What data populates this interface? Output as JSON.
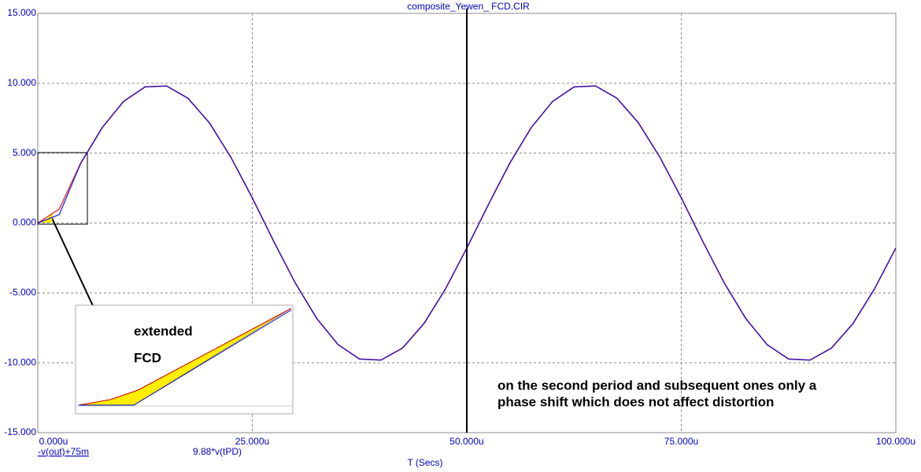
{
  "chart_data": {
    "type": "line",
    "title": "composite_Yewen_      FCD.CIR",
    "x_label": "T (Secs)",
    "x": [
      0,
      2.5,
      5,
      7.5,
      10,
      12.5,
      15,
      17.5,
      20,
      22.5,
      25,
      27.5,
      30,
      32.5,
      35,
      37.5,
      40,
      42.5,
      45,
      47.5,
      50,
      52.5,
      55,
      57.5,
      60,
      62.5,
      65,
      67.5,
      70,
      72.5,
      75,
      77.5,
      80,
      82.5,
      85,
      87.5,
      90,
      92.5,
      95,
      97.5,
      100
    ],
    "series": [
      {
        "name": "-v(out)+75m",
        "color": "#e00000",
        "values": [
          0,
          1.0,
          4.27,
          6.82,
          8.7,
          9.74,
          9.81,
          8.93,
          7.17,
          4.71,
          1.8,
          -1.31,
          -4.28,
          -6.82,
          -8.7,
          -9.73,
          -9.81,
          -8.95,
          -7.2,
          -4.73,
          -1.79,
          1.3,
          4.27,
          6.82,
          8.7,
          9.74,
          9.81,
          8.93,
          7.17,
          4.71,
          1.8,
          -1.31,
          -4.28,
          -6.82,
          -8.7,
          -9.73,
          -9.81,
          -8.95,
          -7.2,
          -4.73,
          -1.79
        ]
      },
      {
        "name": "9.88*v(tPD)",
        "color": "#0000c8",
        "values": [
          0,
          0.6,
          4.27,
          6.82,
          8.7,
          9.74,
          9.81,
          8.93,
          7.17,
          4.71,
          1.8,
          -1.31,
          -4.28,
          -6.82,
          -8.7,
          -9.73,
          -9.81,
          -8.95,
          -7.2,
          -4.73,
          -1.79,
          1.3,
          4.27,
          6.82,
          8.7,
          9.74,
          9.81,
          8.93,
          7.17,
          4.71,
          1.8,
          -1.31,
          -4.28,
          -6.82,
          -8.7,
          -9.73,
          -9.81,
          -8.95,
          -7.2,
          -4.73,
          -1.79
        ]
      }
    ],
    "xlim": [
      0,
      100
    ],
    "xticks": [
      {
        "value": 0,
        "label": "0.000u"
      },
      {
        "value": 25,
        "label": "25.000u"
      },
      {
        "value": 50,
        "label": "50.000u"
      },
      {
        "value": 75,
        "label": "75.000u"
      },
      {
        "value": 100,
        "label": "100.000u"
      }
    ],
    "ylim": [
      -15,
      15
    ],
    "yticks": [
      {
        "value": -15,
        "label": "-15.000"
      },
      {
        "value": -10,
        "label": "-10.000"
      },
      {
        "value": -5,
        "label": "-5.000"
      },
      {
        "value": 0,
        "label": "0.000"
      },
      {
        "value": 5,
        "label": "5.000"
      },
      {
        "value": 10,
        "label": "10.000"
      },
      {
        "value": 15,
        "label": "15.000"
      }
    ],
    "grid": true,
    "cursor_x": 50,
    "annotations": [
      "extended",
      "FCD",
      "on the second period and subsequent ones only a",
      "phase shift which does not affect distortion"
    ]
  }
}
